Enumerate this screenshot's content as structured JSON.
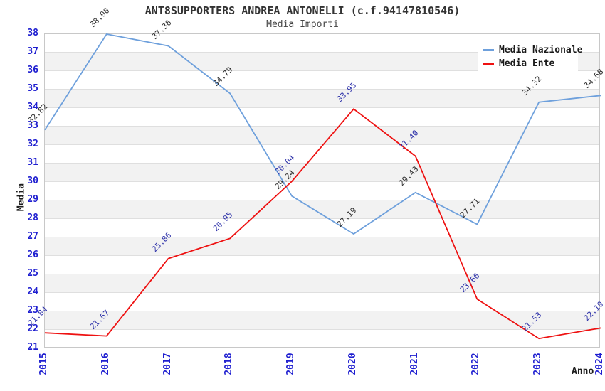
{
  "header": {
    "title": "ANT8SUPPORTERS ANDREA ANTONELLI (c.f.94147810546)",
    "subtitle": "Media Importi"
  },
  "chart_data": {
    "type": "line",
    "title": "ANT8SUPPORTERS ANDREA ANTONELLI (c.f.94147810546)",
    "subtitle": "Media Importi",
    "xlabel": "Anno",
    "ylabel": "Media",
    "x_tick_labels": [
      "2015",
      "2016",
      "2017",
      "2018",
      "2019",
      "2020",
      "2021",
      "2022",
      "2023",
      "2024"
    ],
    "ylim": [
      21,
      38
    ],
    "ytick_step": 1,
    "grid": "horizontal gridlines with alternating white/grey unit bands",
    "legend_position": "top-right",
    "point_label_decimals": 2,
    "point_label_rotation_deg": 45,
    "series": [
      {
        "name": "Media Nazionale",
        "color": "#6ea0dc",
        "label_color": "#2e2e2e",
        "values": [
          32.82,
          38.0,
          37.36,
          34.79,
          29.24,
          27.19,
          29.43,
          27.71,
          34.32,
          34.68
        ]
      },
      {
        "name": "Media Ente",
        "color": "#ee1111",
        "label_color": "#2b2fa8",
        "values": [
          21.84,
          21.67,
          25.86,
          26.95,
          30.04,
          33.95,
          31.4,
          23.66,
          21.53,
          22.1
        ]
      }
    ],
    "colors": {
      "tick_label": "#1f1fd0",
      "grid_line": "#dfdfdf",
      "band_fill": "#f2f2f2",
      "plot_border": "#c8c8c8",
      "background": "#ffffff"
    }
  }
}
